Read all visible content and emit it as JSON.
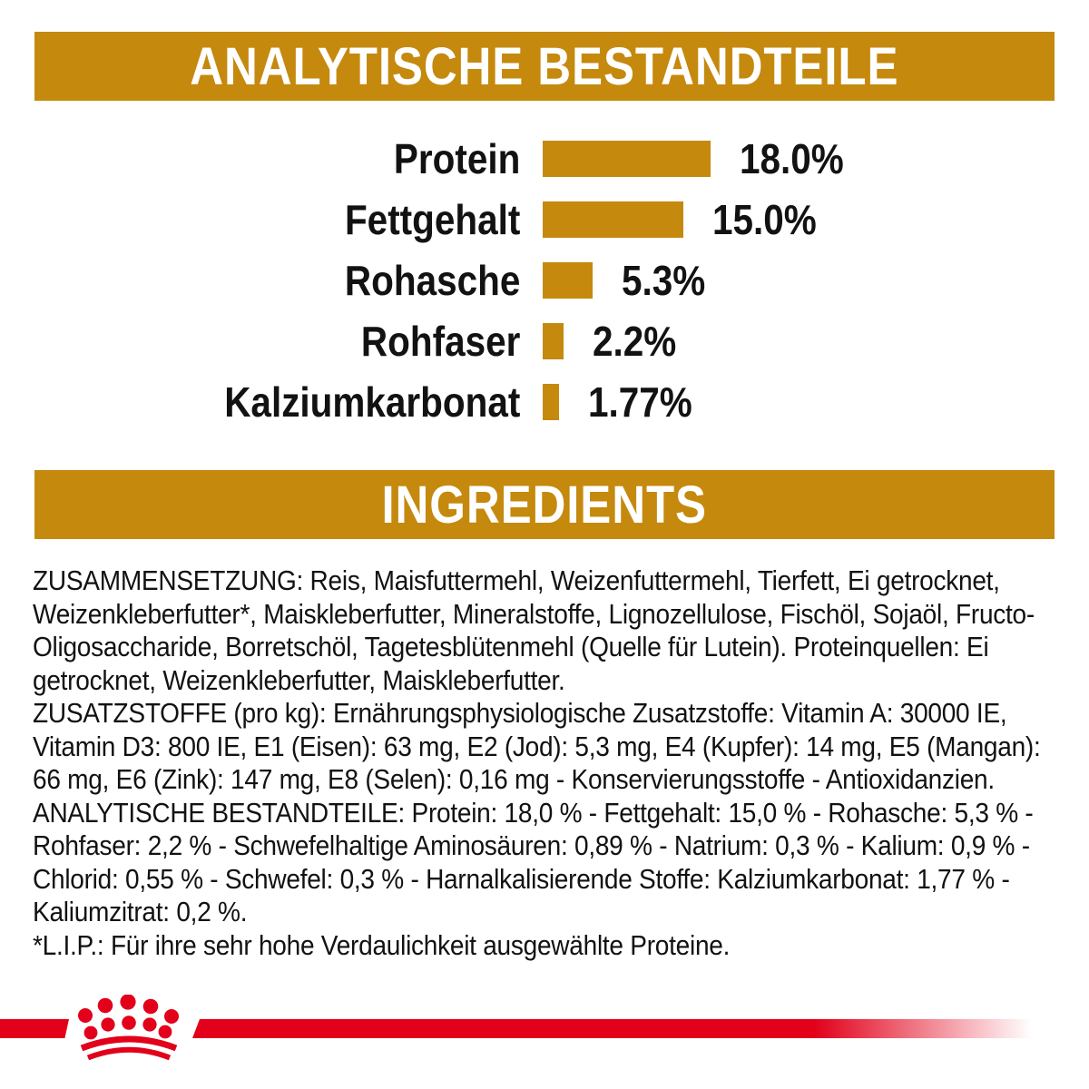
{
  "colors": {
    "gold": "#c5890e",
    "red": "#e2001a",
    "text": "#121212"
  },
  "banners": {
    "analytical_title": "ANALYTISCHE BESTANDTEILE",
    "ingredients_title": "INGREDIENTS"
  },
  "chart_data": {
    "type": "bar",
    "orientation": "horizontal",
    "title": "ANALYTISCHE BESTANDTEILE",
    "categories": [
      "Protein",
      "Fettgehalt",
      "Rohasche",
      "Rohfaser",
      "Kalziumkarbonat"
    ],
    "values": [
      18.0,
      15.0,
      5.3,
      2.2,
      1.77
    ],
    "value_labels": [
      "18.0%",
      "15.0%",
      "5.3%",
      "2.2%",
      "1.77%"
    ],
    "unit": "%",
    "xlim": [
      0,
      18
    ],
    "bar_color": "#c5890e",
    "grid": false,
    "legend": false
  },
  "ingredients_text": {
    "zusammensetzung": "ZUSAMMENSETZUNG: Reis, Maisfuttermehl, Weizenfuttermehl, Tierfett, Ei getrocknet, Weizenkleberfutter*, Maiskleberfutter, Mineralstoffe, Lignozellulose, Fischöl, Sojaöl, Fructo-Oligosaccharide, Borretschöl, Tagetesblütenmehl (Quelle für Lutein). Proteinquellen: Ei getrocknet, Weizenkleberfutter, Maiskleberfutter.",
    "zusatzstoffe": "ZUSATZSTOFFE (pro kg): Ernährungsphysiologische Zusatzstoffe: Vitamin A: 30000 IE, Vitamin D3: 800 IE, E1 (Eisen): 63 mg, E2 (Jod): 5,3 mg, E4 (Kupfer): 14 mg, E5 (Mangan): 66 mg, E6 (Zink): 147 mg, E8 (Selen): 0,16 mg - Konservierungsstoffe - Antioxidanzien.",
    "analytische_bestandteile": "ANALYTISCHE BESTANDTEILE: Protein: 18,0 % - Fettgehalt: 15,0 % - Rohasche: 5,3 % - Rohfaser: 2,2 % - Schwefelhaltige Aminosäuren: 0,89 % - Natrium: 0,3 % - Kalium: 0,9 % - Chlorid: 0,55 % - Schwefel: 0,3 % - Harnalkalisierende Stoffe: Kalziumkarbonat: 1,77 % - Kaliumzitrat: 0,2 %.",
    "lip_note": "*L.I.P.: Für ihre sehr hohe Verdaulichkeit ausgewählte Proteine."
  },
  "footer": {
    "logo": "royal-canin-crown"
  }
}
